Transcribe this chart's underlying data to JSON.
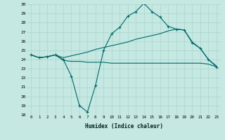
{
  "xlabel": "Humidex (Indice chaleur)",
  "x": [
    0,
    1,
    2,
    3,
    4,
    5,
    6,
    7,
    8,
    9,
    10,
    11,
    12,
    13,
    14,
    15,
    16,
    17,
    18,
    19,
    20,
    21,
    22,
    23
  ],
  "line1": [
    24.5,
    24.2,
    24.3,
    24.5,
    24.0,
    22.2,
    19.0,
    18.3,
    21.2,
    25.0,
    26.8,
    27.5,
    28.7,
    29.2,
    30.1,
    29.2,
    28.6,
    27.6,
    27.3,
    27.2,
    25.8,
    25.2,
    24.0,
    23.2
  ],
  "line2": [
    24.5,
    24.2,
    24.3,
    24.5,
    23.9,
    23.8,
    23.8,
    23.7,
    23.7,
    23.7,
    23.6,
    23.6,
    23.6,
    23.6,
    23.6,
    23.6,
    23.6,
    23.6,
    23.6,
    23.6,
    23.6,
    23.6,
    23.5,
    23.2
  ],
  "line3": [
    24.5,
    24.2,
    24.3,
    24.5,
    24.2,
    24.4,
    24.6,
    24.8,
    25.1,
    25.3,
    25.5,
    25.7,
    25.9,
    26.2,
    26.4,
    26.6,
    26.8,
    27.1,
    27.3,
    27.2,
    25.9,
    25.2,
    24.0,
    23.3
  ],
  "ylim": [
    18,
    30
  ],
  "yticks": [
    18,
    19,
    20,
    21,
    22,
    23,
    24,
    25,
    26,
    27,
    28,
    29,
    30
  ],
  "bg_color": "#c5e8e2",
  "grid_color": "#aad4cc",
  "line_color": "#006868"
}
